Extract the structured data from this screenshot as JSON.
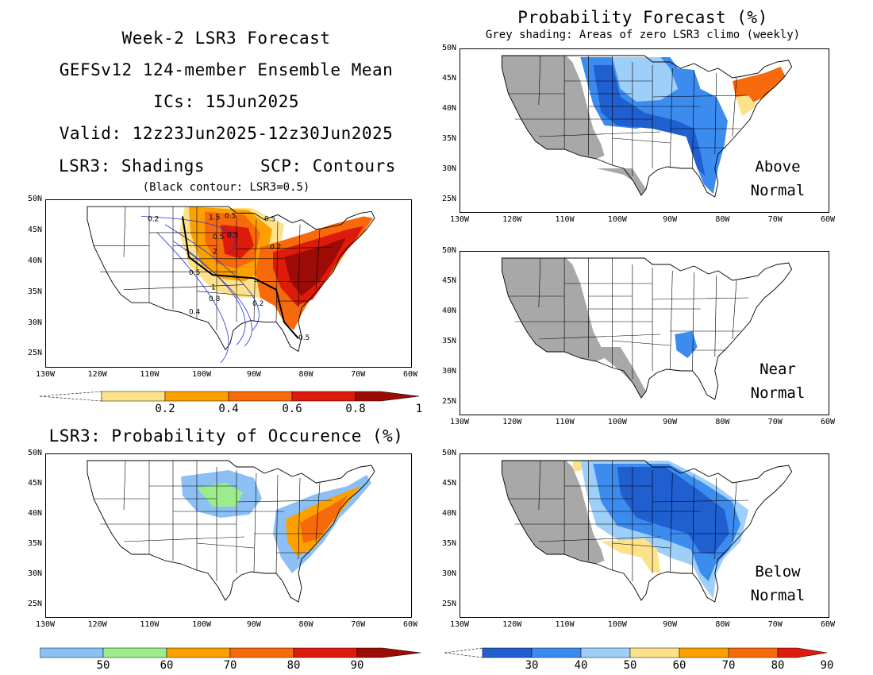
{
  "header": {
    "title": "Week-2 LSR3 Forecast",
    "model": "GEFSv12 124-member Ensemble Mean",
    "ics": "ICs: 15Jun2025",
    "valid": "Valid: 12z23Jun2025-12z30Jun2025",
    "shadings": "LSR3: Shadings",
    "contours": "SCP: Contours",
    "contour_note": "(Black contour: LSR3=0.5)"
  },
  "prob_header": {
    "title": "Probability Forecast (%)",
    "subtitle": "Grey shading: Areas of zero LSR3 climo (weekly)"
  },
  "occurrence_title": "LSR3: Probability of Occurence (%)",
  "axes": {
    "lat_labels": [
      "50N",
      "45N",
      "40N",
      "35N",
      "30N",
      "25N"
    ],
    "lon_labels": [
      "130W",
      "120W",
      "110W",
      "100W",
      "90W",
      "80W",
      "70W",
      "60W"
    ]
  },
  "panels": {
    "above": {
      "line1": "Above",
      "line2": "Normal"
    },
    "near": {
      "line1": "Near",
      "line2": "Normal"
    },
    "below": {
      "line1": "Below",
      "line2": "Normal"
    }
  },
  "colorbars": {
    "lsr3": {
      "labels": [
        "0.2",
        "0.4",
        "0.6",
        "0.8",
        "1"
      ],
      "colors": [
        "#fde28a",
        "#fca000",
        "#f76a0c",
        "#dc1b0b",
        "#9c0b06"
      ]
    },
    "occurrence": {
      "labels": [
        "50",
        "60",
        "70",
        "80",
        "90"
      ],
      "colors": [
        "#8cc0f5",
        "#9ceb8c",
        "#fca000",
        "#f76a0c",
        "#dc1b0b",
        "#9c0b06"
      ]
    },
    "below": {
      "labels": [
        "30",
        "40",
        "50",
        "60",
        "70",
        "80",
        "90"
      ],
      "colors": [
        "#1f5fd0",
        "#3c8cf0",
        "#9ecff8",
        "#fde28a",
        "#fca000",
        "#f76a0c",
        "#dc1b0b"
      ]
    }
  },
  "contour_labels": [
    "0.2",
    "1.5",
    "0.5",
    "0.5",
    "0.5",
    "0.5",
    "2",
    "0.5",
    "1",
    "0.8",
    "0.2",
    "0.4",
    "0.2",
    "0.5"
  ],
  "colors": {
    "grey": "#a8a8a8",
    "blue_dark": "#1f5fd0",
    "blue_mid": "#3c8cf0",
    "blue_light": "#9ecff8",
    "yellow": "#fde28a",
    "orange": "#fca000",
    "orange_dark": "#f76a0c",
    "red": "#dc1b0b",
    "dark_red": "#9c0b06",
    "green": "#9ceb8c",
    "contour_blue": "#2233dd"
  }
}
